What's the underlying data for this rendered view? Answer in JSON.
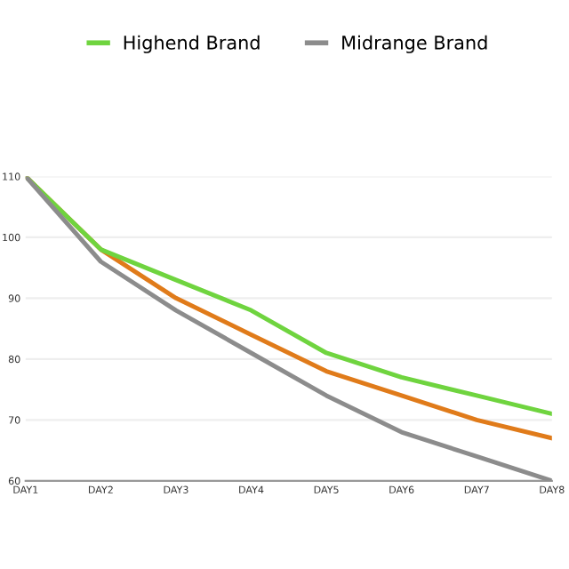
{
  "chart_data": {
    "type": "line",
    "categories": [
      "DAY1",
      "DAY2",
      "DAY3",
      "DAY4",
      "DAY5",
      "DAY6",
      "DAY7",
      "DAY8"
    ],
    "series": [
      {
        "color": "#e07b1a",
        "values": [
          110,
          98,
          90,
          84,
          78,
          74,
          70,
          67
        ]
      },
      {
        "name": "Highend Brand",
        "color": "#6fd43f",
        "values": [
          110,
          98,
          93,
          88,
          81,
          77,
          74,
          71
        ]
      },
      {
        "name": "Midrange Brand",
        "color": "#8c8c8c",
        "values": [
          110,
          96,
          88,
          81,
          74,
          68,
          64,
          60
        ]
      }
    ],
    "ylim": [
      60,
      110
    ],
    "yticks": [
      60,
      70,
      80,
      90,
      100,
      110
    ],
    "grid": "y",
    "legend": "top",
    "marker": "none",
    "line_style": "solid"
  }
}
